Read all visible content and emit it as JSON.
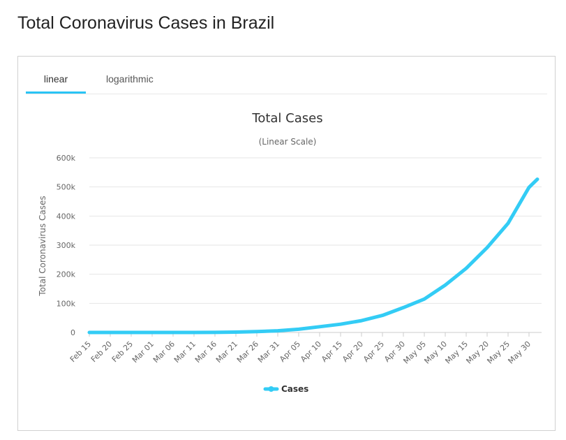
{
  "page": {
    "title": "Total Coronavirus Cases in Brazil"
  },
  "tabs": [
    {
      "label": "linear",
      "active": true
    },
    {
      "label": "logarithmic",
      "active": false
    }
  ],
  "colors": {
    "series": "#33ccf5",
    "active_tab": "#29c4f5",
    "grid": "#e6e6e6"
  },
  "chart_data": {
    "type": "line",
    "title": "Total Cases",
    "subtitle": "(Linear Scale)",
    "ylabel": "Total Coronavirus Cases",
    "xlabel": "",
    "ylim": [
      0,
      600000
    ],
    "y_ticks": [
      "0",
      "100k",
      "200k",
      "300k",
      "400k",
      "500k",
      "600k"
    ],
    "x_ticks": [
      "Feb 15",
      "Feb 20",
      "Feb 25",
      "Mar 01",
      "Mar 06",
      "Mar 11",
      "Mar 16",
      "Mar 21",
      "Mar 26",
      "Mar 31",
      "Apr 05",
      "Apr 10",
      "Apr 15",
      "Apr 20",
      "Apr 25",
      "Apr 30",
      "May 05",
      "May 10",
      "May 15",
      "May 20",
      "May 25",
      "May 30"
    ],
    "legend": "bottom-center",
    "grid": true,
    "series": [
      {
        "name": "Cases",
        "x": [
          "Feb 15",
          "Feb 20",
          "Feb 25",
          "Mar 01",
          "Mar 06",
          "Mar 11",
          "Mar 16",
          "Mar 21",
          "Mar 26",
          "Mar 31",
          "Apr 05",
          "Apr 10",
          "Apr 15",
          "Apr 20",
          "Apr 25",
          "Apr 30",
          "May 05",
          "May 10",
          "May 15",
          "May 20",
          "May 25",
          "May 30",
          "Jun 01"
        ],
        "values": [
          0,
          0,
          0,
          2,
          13,
          52,
          234,
          1178,
          2915,
          5717,
          11130,
          19789,
          28320,
          40581,
          58509,
          85380,
          114715,
          162699,
          220291,
          291579,
          374898,
          498440,
          526447
        ]
      }
    ]
  }
}
